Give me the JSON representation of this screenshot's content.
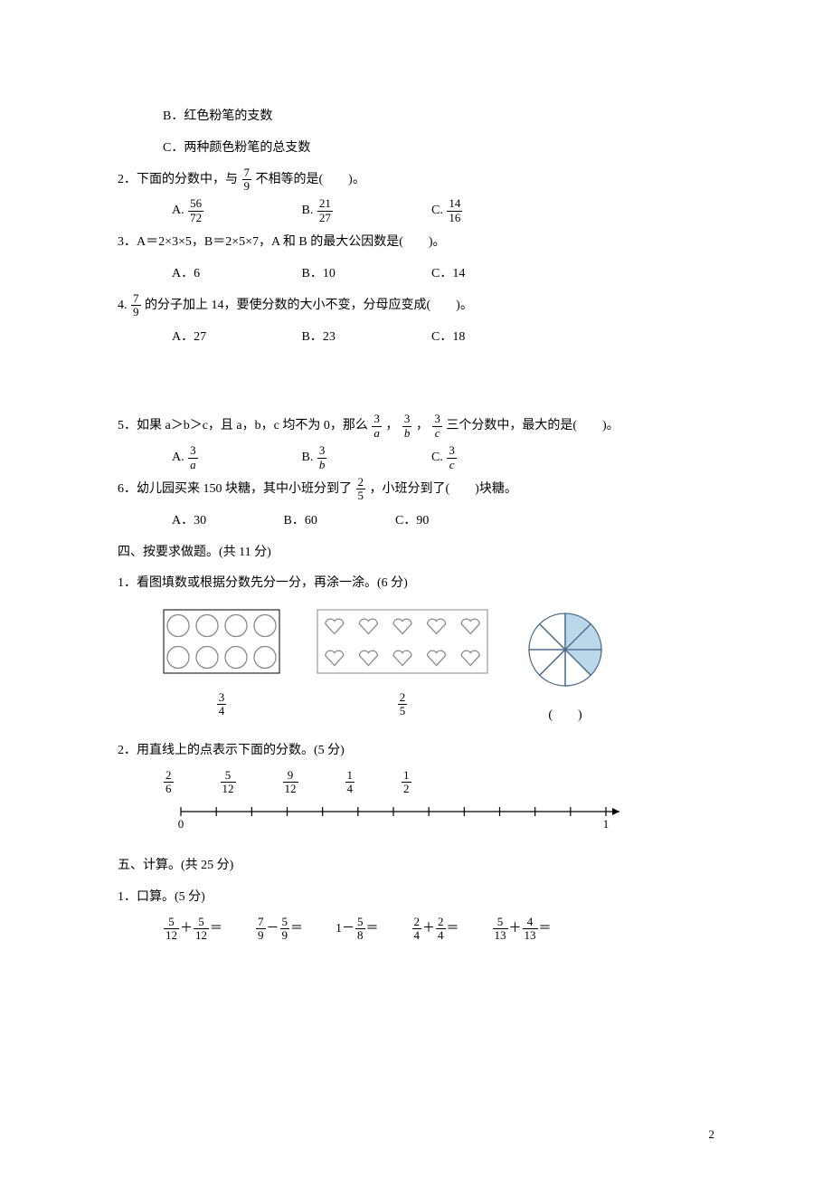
{
  "q1": {
    "optB": "B．红色粉笔的支数",
    "optC": "C．两种颜色粉笔的总支数"
  },
  "q2": {
    "stem_a": "2．下面的分数中，与",
    "frac": {
      "n": "7",
      "d": "9"
    },
    "stem_b": "不相等的是(　　)。",
    "opts": {
      "A": {
        "label": "A.",
        "n": "56",
        "d": "72"
      },
      "B": {
        "label": "B.",
        "n": "21",
        "d": "27"
      },
      "C": {
        "label": "C.",
        "n": "14",
        "d": "16"
      }
    }
  },
  "q3": {
    "stem": "3．A＝2×3×5，B＝2×5×7，A 和 B 的最大公因数是(　　)。",
    "opts": {
      "A": "A．6",
      "B": "B．10",
      "C": "C．14"
    }
  },
  "q4": {
    "stem_a": "4.",
    "frac": {
      "n": "7",
      "d": "9"
    },
    "stem_b": "的分子加上 14，要使分数的大小不变，分母应变成(　　)。",
    "opts": {
      "A": "A．27",
      "B": "B．23",
      "C": "C．18"
    }
  },
  "q5": {
    "stem_a": "5．如果 a＞b＞c，且 a，b，c 均不为 0，那么",
    "f1": {
      "n": "3",
      "d": "a"
    },
    "sep": "，",
    "f2": {
      "n": "3",
      "d": "b"
    },
    "f3": {
      "n": "3",
      "d": "c"
    },
    "stem_b": " 三个分数中，最大的是(　　)。",
    "opts": {
      "A": {
        "label": "A.",
        "n": "3",
        "d": "a"
      },
      "B": {
        "label": "B.",
        "n": "3",
        "d": "b"
      },
      "C": {
        "label": "C.",
        "n": "3",
        "d": "c"
      }
    }
  },
  "q6": {
    "stem_a": "6．幼儿园买来 150 块糖，其中小班分到了",
    "frac": {
      "n": "2",
      "d": "5"
    },
    "stem_b": "，小班分到了(　　)块糖。",
    "opts": {
      "A": "A．30",
      "B": "B．60",
      "C": "C．90"
    }
  },
  "sec4": {
    "title": "四、按要求做题。(共 11 分)",
    "p1": {
      "stem": "1．看图填数或根据分数先分一分，再涂一涂。(6 分)",
      "fig1_frac": {
        "n": "3",
        "d": "4"
      },
      "fig2_frac": {
        "n": "2",
        "d": "5"
      },
      "fig3_label": "(　　)",
      "circles": {
        "rows": 2,
        "cols": 4,
        "stroke": "#888888",
        "box": "#000000"
      },
      "hearts": {
        "rows": 2,
        "cols": 5,
        "stroke": "#888888",
        "box": "#888888"
      },
      "pie": {
        "slices": 8,
        "shaded": [
          0,
          1,
          2
        ],
        "fill": "#bcd6ea",
        "stroke": "#4a6a88"
      }
    },
    "p2": {
      "stem": "2．用直线上的点表示下面的分数。(5 分)",
      "fracs": [
        {
          "n": "2",
          "d": "6"
        },
        {
          "n": "5",
          "d": "12"
        },
        {
          "n": "9",
          "d": "12"
        },
        {
          "n": "1",
          "d": "4"
        },
        {
          "n": "1",
          "d": "2"
        }
      ],
      "ticks": 13,
      "labels": {
        "start": "0",
        "end": "1"
      }
    }
  },
  "sec5": {
    "title": "五、计算。(共 25 分)",
    "p1": {
      "stem": "1．口算。(5 分)",
      "items": [
        {
          "a": {
            "n": "5",
            "d": "12"
          },
          "op": "＋",
          "b": {
            "n": "5",
            "d": "12"
          },
          "eq": "＝"
        },
        {
          "a": {
            "n": "7",
            "d": "9"
          },
          "op": "－",
          "b": {
            "n": "5",
            "d": "9"
          },
          "eq": "＝"
        },
        {
          "lead": "1－",
          "b": {
            "n": "5",
            "d": "8"
          },
          "eq": "＝"
        },
        {
          "a": {
            "n": "2",
            "d": "4"
          },
          "op": "＋",
          "b": {
            "n": "2",
            "d": "4"
          },
          "eq": "＝"
        },
        {
          "a": {
            "n": "5",
            "d": "13"
          },
          "op": "＋",
          "b": {
            "n": "4",
            "d": "13"
          },
          "eq": "＝"
        }
      ]
    }
  },
  "page_num": "2"
}
